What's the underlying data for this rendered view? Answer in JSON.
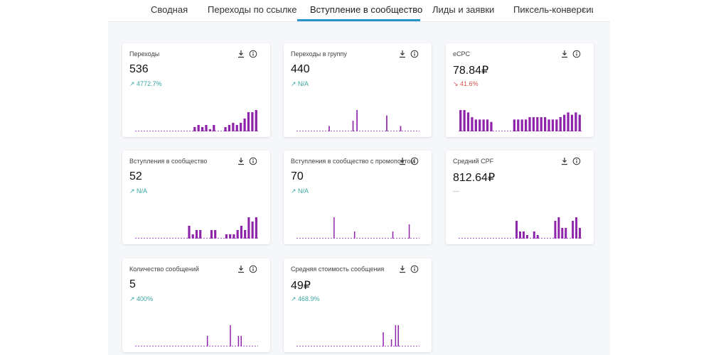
{
  "tabs": [
    {
      "label": "Сводная"
    },
    {
      "label": "Переходы по ссылке"
    },
    {
      "label": "Вступление в сообщество"
    },
    {
      "label": "Лиды и заявки"
    },
    {
      "label": "Пиксель-конверсии"
    }
  ],
  "tabs_next_icon": "chevron-right-icon",
  "colors": {
    "accent": "#2a93c9",
    "bar": "#8e24aa",
    "up": "#3aa7a3",
    "down": "#d9534f"
  },
  "cards": [
    {
      "title": "Переходы",
      "value": "536",
      "change": "4772.7%",
      "trend": "up",
      "bars": [
        0,
        0,
        0,
        0,
        0,
        0,
        0,
        0,
        0,
        0,
        0,
        0,
        0,
        0,
        0,
        2,
        3,
        2,
        3,
        1,
        3,
        0,
        0,
        2,
        3,
        4,
        3,
        4,
        6,
        9,
        9,
        10
      ]
    },
    {
      "title": "Переходы в группу",
      "value": "440",
      "change": "N/A",
      "trend": "up",
      "bars": [
        0,
        0,
        0,
        0,
        0,
        0,
        0,
        0,
        0,
        0,
        0,
        0,
        0,
        0,
        0,
        0,
        1,
        0,
        0,
        0,
        0,
        0,
        0,
        0,
        0,
        0,
        0,
        0,
        2,
        0,
        4,
        0,
        0,
        0,
        0,
        0,
        0,
        0,
        0,
        0,
        0,
        0,
        0,
        0,
        0,
        3,
        0,
        0,
        0,
        0,
        0,
        0,
        1,
        0,
        0,
        0,
        0,
        0,
        0,
        0,
        0,
        0
      ]
    },
    {
      "title": "eCPC",
      "value": "78.84₽",
      "change": "41.6%",
      "trend": "down",
      "bars": [
        9,
        9,
        8,
        6,
        5,
        5,
        5,
        5,
        4,
        0,
        0,
        0,
        0,
        0,
        5,
        5,
        5,
        5,
        6,
        6,
        6,
        6,
        6,
        5,
        5,
        5,
        6,
        7,
        8,
        7,
        8,
        7
      ]
    },
    {
      "title": "Вступления в сообщество",
      "value": "52",
      "change": "N/A",
      "trend": "up",
      "bars": [
        0,
        0,
        0,
        0,
        0,
        0,
        0,
        0,
        0,
        0,
        0,
        0,
        0,
        0,
        3,
        1,
        2,
        2,
        0,
        0,
        2,
        2,
        0,
        0,
        1,
        1,
        1,
        2,
        3,
        2,
        5,
        4,
        5
      ]
    },
    {
      "title": "Вступления в сообщество с промопостом",
      "value": "70",
      "change": "N/A",
      "trend": "up",
      "bars": [
        0,
        0,
        0,
        0,
        0,
        0,
        0,
        0,
        0,
        0,
        0,
        0,
        0,
        0,
        0,
        0,
        0,
        0,
        0,
        0,
        0,
        0,
        0,
        0,
        0,
        0,
        0,
        3,
        0,
        0,
        0,
        0,
        0,
        0,
        0,
        0,
        0,
        0,
        0,
        0,
        0,
        0,
        1,
        0,
        0,
        0,
        0,
        0,
        0,
        0,
        0,
        0,
        0,
        0,
        0,
        0,
        0,
        0,
        0,
        0,
        0,
        0,
        0,
        0,
        0,
        0,
        0,
        0,
        0,
        0,
        1,
        0,
        0,
        0,
        0,
        0,
        0,
        0,
        0,
        0,
        0,
        0,
        2,
        0,
        0,
        0,
        0,
        0,
        0,
        0
      ]
    },
    {
      "title": "Средний CPF",
      "value": "812.64₽",
      "change": "—",
      "trend": "neutral",
      "bars": [
        0,
        0,
        0,
        0,
        0,
        0,
        0,
        0,
        0,
        0,
        0,
        0,
        0,
        0,
        0,
        0,
        5,
        2,
        2,
        1,
        0,
        2,
        1,
        0,
        0,
        0,
        0,
        5,
        6,
        3,
        3,
        0,
        5,
        6,
        3
      ]
    },
    {
      "title": "Количество сообщений",
      "value": "5",
      "change": "400%",
      "trend": "up",
      "bars": [
        0,
        0,
        0,
        0,
        0,
        0,
        0,
        0,
        0,
        0,
        0,
        0,
        0,
        0,
        0,
        0,
        0,
        0,
        0,
        0,
        0,
        0,
        0,
        0,
        0,
        0,
        0,
        0,
        0,
        0,
        0,
        0,
        0,
        0,
        0,
        0,
        0,
        0,
        0,
        0,
        0,
        0,
        0,
        0,
        0,
        0,
        0,
        0,
        0,
        0,
        0,
        0,
        0,
        1,
        0,
        0,
        0,
        0,
        0,
        0,
        0,
        0,
        0,
        0,
        0,
        0,
        0,
        0,
        0,
        0,
        2,
        0,
        0,
        0,
        0,
        0,
        1,
        0,
        1,
        0,
        0,
        0,
        0,
        0,
        0,
        0,
        0,
        0,
        0,
        0,
        0
      ]
    },
    {
      "title": "Средняя стоимость сообщения",
      "value": "49₽",
      "change": "468.9%",
      "trend": "up",
      "bars": [
        0,
        0,
        0,
        0,
        0,
        0,
        0,
        0,
        0,
        0,
        0,
        0,
        0,
        0,
        0,
        0,
        0,
        0,
        0,
        0,
        0,
        0,
        0,
        0,
        0,
        0,
        0,
        0,
        0,
        0,
        0,
        0,
        0,
        0,
        0,
        0,
        0,
        0,
        0,
        0,
        0,
        0,
        0,
        0,
        0,
        0,
        0,
        0,
        0,
        0,
        0,
        0,
        0,
        0,
        0,
        0,
        0,
        0,
        0,
        0,
        0,
        0,
        0,
        2,
        0,
        0,
        0,
        0,
        0,
        1,
        0,
        0,
        3,
        0,
        3,
        0,
        0,
        0,
        0,
        0,
        0,
        0,
        0,
        0,
        0,
        0,
        0,
        0,
        0,
        0
      ]
    }
  ]
}
